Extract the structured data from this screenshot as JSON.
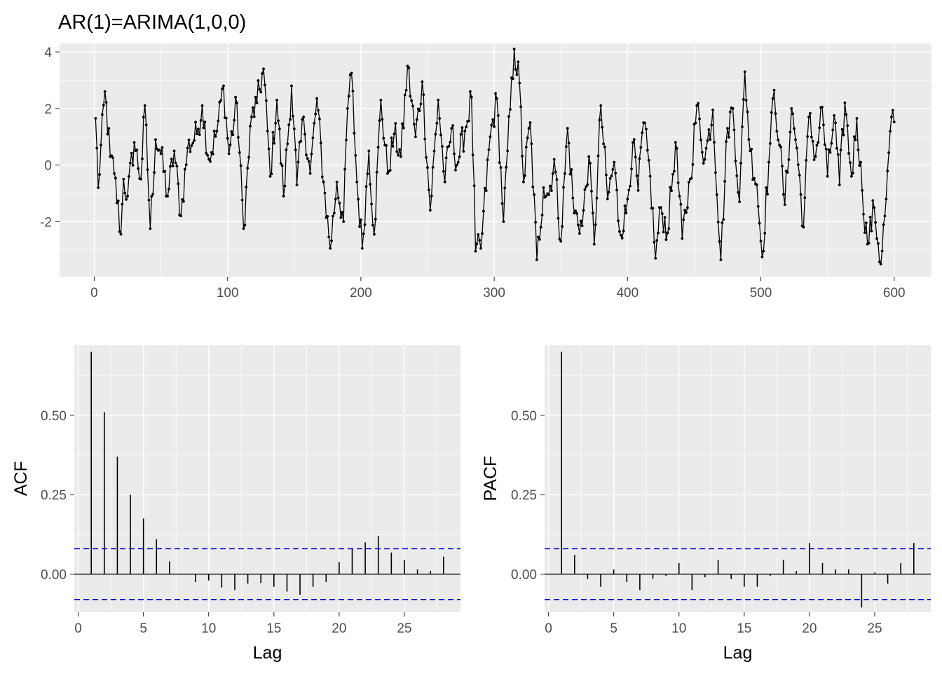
{
  "colors": {
    "panel": "#ebebeb",
    "grid": "#ffffff",
    "series": "#000000",
    "ci": "#0000cc",
    "tick_label": "#4d4d4d"
  },
  "chart_data": [
    {
      "id": "ts",
      "type": "line",
      "title": "AR(1)=ARIMA(1,0,0)",
      "xlabel": "",
      "ylabel": "",
      "xlim": [
        -26,
        628
      ],
      "ylim": [
        -3.95,
        4.3
      ],
      "xticks": [
        0,
        100,
        200,
        300,
        400,
        500,
        600
      ],
      "xtick_labels": [
        "0",
        "100",
        "200",
        "300",
        "400",
        "500",
        "600"
      ],
      "yticks": [
        -2,
        0,
        2,
        4
      ],
      "ytick_labels": [
        "-2",
        "0",
        "2",
        "4"
      ],
      "grid": true,
      "n": 600,
      "anchors": [
        [
          1,
          1.65
        ],
        [
          3,
          -0.8
        ],
        [
          8,
          2.6
        ],
        [
          12,
          0.3
        ],
        [
          15,
          -0.3
        ],
        [
          20,
          -2.45
        ],
        [
          22,
          -0.5
        ],
        [
          25,
          -1.1
        ],
        [
          30,
          0.8
        ],
        [
          35,
          -0.5
        ],
        [
          38,
          2.1
        ],
        [
          42,
          -2.25
        ],
        [
          46,
          0.9
        ],
        [
          50,
          0.4
        ],
        [
          55,
          -1.1
        ],
        [
          60,
          0.5
        ],
        [
          65,
          -1.8
        ],
        [
          70,
          0.6
        ],
        [
          77,
          1.1
        ],
        [
          81,
          2.1
        ],
        [
          86,
          0.2
        ],
        [
          92,
          1.2
        ],
        [
          97,
          2.8
        ],
        [
          101,
          0.4
        ],
        [
          107,
          2.2
        ],
        [
          112,
          -2.25
        ],
        [
          118,
          1.7
        ],
        [
          122,
          2.2
        ],
        [
          127,
          3.4
        ],
        [
          132,
          -0.4
        ],
        [
          137,
          2.3
        ],
        [
          142,
          -1.1
        ],
        [
          148,
          2.8
        ],
        [
          152,
          -0.7
        ],
        [
          157,
          1.7
        ],
        [
          162,
          -0.3
        ],
        [
          167,
          2.35
        ],
        [
          172,
          -0.6
        ],
        [
          177,
          -2.95
        ],
        [
          182,
          -0.6
        ],
        [
          187,
          -2.0
        ],
        [
          190,
          2.0
        ],
        [
          193,
          3.25
        ],
        [
          197,
          -0.6
        ],
        [
          201,
          -2.95
        ],
        [
          206,
          0.5
        ],
        [
          210,
          -2.45
        ],
        [
          215,
          2.3
        ],
        [
          220,
          -0.3
        ],
        [
          225,
          1.1
        ],
        [
          230,
          0.3
        ],
        [
          235,
          3.5
        ],
        [
          241,
          1.0
        ],
        [
          246,
          2.95
        ],
        [
          252,
          -1.6
        ],
        [
          258,
          2.3
        ],
        [
          263,
          -0.6
        ],
        [
          268,
          1.3
        ],
        [
          272,
          0.0
        ],
        [
          278,
          1.2
        ],
        [
          283,
          2.4
        ],
        [
          286,
          -3.05
        ],
        [
          290,
          -2.95
        ],
        [
          297,
          1.0
        ],
        [
          302,
          2.35
        ],
        [
          307,
          -2.0
        ],
        [
          310,
          0.5
        ],
        [
          315,
          4.1
        ],
        [
          319,
          2.9
        ],
        [
          322,
          -0.6
        ],
        [
          327,
          1.5
        ],
        [
          332,
          -3.35
        ],
        [
          337,
          -0.8
        ],
        [
          341,
          -1.05
        ],
        [
          345,
          0.2
        ],
        [
          350,
          -2.7
        ],
        [
          355,
          1.3
        ],
        [
          360,
          -1.7
        ],
        [
          366,
          -2.15
        ],
        [
          371,
          0.3
        ],
        [
          375,
          -2.8
        ],
        [
          380,
          2.1
        ],
        [
          385,
          -1.2
        ],
        [
          390,
          0.1
        ],
        [
          394,
          -2.35
        ],
        [
          399,
          -1.7
        ],
        [
          404,
          0.8
        ],
        [
          408,
          -0.9
        ],
        [
          412,
          1.5
        ],
        [
          417,
          -0.4
        ],
        [
          421,
          -3.3
        ],
        [
          425,
          -1.5
        ],
        [
          430,
          -2.4
        ],
        [
          436,
          0.8
        ],
        [
          441,
          -2.6
        ],
        [
          447,
          -0.5
        ],
        [
          452,
          2.1
        ],
        [
          458,
          0.2
        ],
        [
          464,
          1.95
        ],
        [
          470,
          -3.35
        ],
        [
          475,
          1.3
        ],
        [
          479,
          2.0
        ],
        [
          484,
          -1.3
        ],
        [
          488,
          3.3
        ],
        [
          492,
          0.5
        ],
        [
          497,
          -0.7
        ],
        [
          501,
          -3.25
        ],
        [
          506,
          0.1
        ],
        [
          510,
          2.65
        ],
        [
          514,
          0.7
        ],
        [
          518,
          -1.4
        ],
        [
          523,
          2.0
        ],
        [
          527,
          0.6
        ],
        [
          532,
          -2.2
        ],
        [
          536,
          1.7
        ],
        [
          541,
          0.3
        ],
        [
          546,
          2.05
        ],
        [
          550,
          -0.4
        ],
        [
          555,
          1.75
        ],
        [
          559,
          -0.7
        ],
        [
          563,
          2.2
        ],
        [
          568,
          -0.4
        ],
        [
          572,
          1.65
        ],
        [
          576,
          -0.9
        ],
        [
          580,
          -2.8
        ],
        [
          585,
          -1.5
        ],
        [
          590,
          -3.5
        ],
        [
          594,
          -1.2
        ],
        [
          598,
          1.7
        ],
        [
          601,
          1.0
        ]
      ]
    },
    {
      "id": "acf",
      "type": "bar",
      "title": "",
      "xlabel": "Lag",
      "ylabel": "ACF",
      "xlim": [
        -0.3,
        29.3
      ],
      "ylim": [
        -0.12,
        0.72
      ],
      "xticks": [
        0,
        5,
        10,
        15,
        20,
        25
      ],
      "xtick_labels": [
        "0",
        "5",
        "10",
        "15",
        "20",
        "25"
      ],
      "yticks": [
        0,
        0.25,
        0.5
      ],
      "ytick_labels": [
        "0.00",
        "0.25",
        "0.50"
      ],
      "grid": true,
      "lags": [
        1,
        2,
        3,
        4,
        5,
        6,
        7,
        8,
        9,
        10,
        11,
        12,
        13,
        14,
        15,
        16,
        17,
        18,
        19,
        20,
        21,
        22,
        23,
        24,
        25,
        26,
        27,
        28
      ],
      "values": [
        0.7,
        0.51,
        0.37,
        0.25,
        0.175,
        0.11,
        0.04,
        0.0,
        -0.025,
        -0.02,
        -0.042,
        -0.05,
        -0.03,
        -0.028,
        -0.04,
        -0.055,
        -0.065,
        -0.04,
        -0.025,
        0.038,
        0.08,
        0.1,
        0.12,
        0.068,
        0.045,
        0.015,
        0.01,
        0.055
      ],
      "ci": [
        0.08,
        -0.08
      ]
    },
    {
      "id": "pacf",
      "type": "bar",
      "title": "",
      "xlabel": "Lag",
      "ylabel": "PACF",
      "xlim": [
        -0.3,
        29.3
      ],
      "ylim": [
        -0.12,
        0.72
      ],
      "xticks": [
        0,
        5,
        10,
        15,
        20,
        25
      ],
      "xtick_labels": [
        "0",
        "5",
        "10",
        "15",
        "20",
        "25"
      ],
      "yticks": [
        0,
        0.25,
        0.5
      ],
      "ytick_labels": [
        "0.00",
        "0.25",
        "0.50"
      ],
      "grid": true,
      "lags": [
        1,
        2,
        3,
        4,
        5,
        6,
        7,
        8,
        9,
        10,
        11,
        12,
        13,
        14,
        15,
        16,
        17,
        18,
        19,
        20,
        21,
        22,
        23,
        24,
        25,
        26,
        27,
        28
      ],
      "values": [
        0.7,
        0.06,
        -0.015,
        -0.04,
        0.015,
        -0.025,
        -0.05,
        -0.015,
        -0.005,
        0.035,
        -0.05,
        -0.01,
        0.045,
        -0.015,
        -0.04,
        -0.04,
        -0.005,
        0.045,
        0.01,
        0.098,
        0.035,
        0.015,
        0.015,
        -0.105,
        0.005,
        -0.03,
        0.035,
        0.098
      ],
      "ci": [
        0.08,
        -0.08
      ]
    }
  ]
}
